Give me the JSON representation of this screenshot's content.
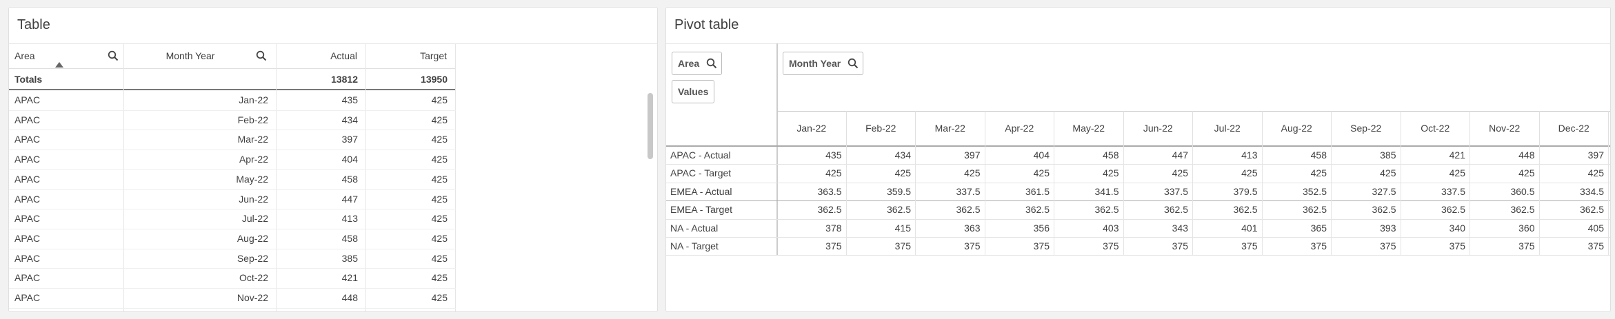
{
  "left": {
    "title": "Table",
    "headers": [
      "Area",
      "Month Year",
      "Actual",
      "Target"
    ],
    "totals": {
      "label": "Totals",
      "actual": 13812,
      "target": 13950
    },
    "rows": [
      [
        "APAC",
        "Jan-22",
        435,
        425
      ],
      [
        "APAC",
        "Feb-22",
        434,
        425
      ],
      [
        "APAC",
        "Mar-22",
        397,
        425
      ],
      [
        "APAC",
        "Apr-22",
        404,
        425
      ],
      [
        "APAC",
        "May-22",
        458,
        425
      ],
      [
        "APAC",
        "Jun-22",
        447,
        425
      ],
      [
        "APAC",
        "Jul-22",
        413,
        425
      ],
      [
        "APAC",
        "Aug-22",
        458,
        425
      ],
      [
        "APAC",
        "Sep-22",
        385,
        425
      ],
      [
        "APAC",
        "Oct-22",
        421,
        425
      ],
      [
        "APAC",
        "Nov-22",
        448,
        425
      ]
    ]
  },
  "right": {
    "title": "Pivot table",
    "row_buttons": [
      "Area",
      "Values"
    ],
    "column_button": "Month Year",
    "columns": [
      "Jan-22",
      "Feb-22",
      "Mar-22",
      "Apr-22",
      "May-22",
      "Jun-22",
      "Jul-22",
      "Aug-22",
      "Sep-22",
      "Oct-22",
      "Nov-22",
      "Dec-22"
    ],
    "rows": [
      {
        "label": "APAC - Actual",
        "values": [
          435,
          434,
          397,
          404,
          458,
          447,
          413,
          458,
          385,
          421,
          448,
          397
        ]
      },
      {
        "label": "APAC - Target",
        "values": [
          425,
          425,
          425,
          425,
          425,
          425,
          425,
          425,
          425,
          425,
          425,
          425
        ]
      },
      {
        "label": "EMEA - Actual",
        "values": [
          363.5,
          359.5,
          337.5,
          361.5,
          341.5,
          337.5,
          379.5,
          352.5,
          327.5,
          337.5,
          360.5,
          334.5
        ]
      },
      {
        "label": "EMEA - Target",
        "values": [
          362.5,
          362.5,
          362.5,
          362.5,
          362.5,
          362.5,
          362.5,
          362.5,
          362.5,
          362.5,
          362.5,
          362.5
        ]
      },
      {
        "label": "NA - Actual",
        "values": [
          378,
          415,
          363,
          356,
          403,
          343,
          401,
          365,
          393,
          340,
          360,
          405
        ]
      },
      {
        "label": "NA - Target",
        "values": [
          375,
          375,
          375,
          375,
          375,
          375,
          375,
          375,
          375,
          375,
          375,
          375
        ]
      }
    ]
  }
}
